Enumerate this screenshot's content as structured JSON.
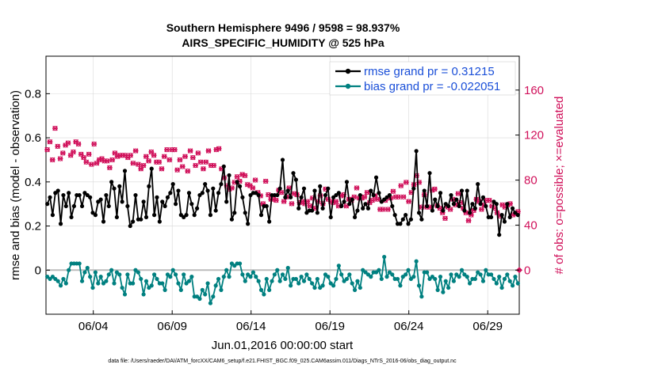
{
  "chart_data": {
    "type": "line",
    "title_line1": "Southern Hemisphere 9496 / 9598 = 98.937%",
    "title_line2": "AIRS_SPECIFIC_HUMIDITY @ 525 hPa",
    "xlabel": "Jun.01,2016 00:00:00 start",
    "ylabel_left": "rmse and bias (model - observation)",
    "ylabel_right": "# of obs: o=possible; ×=evaluated",
    "footnote": "data file: /Users/raeder/DAI/ATM_forcXX/CAM6_setup/f.e21.FHIST_BGC.f09_025.CAM6assim.011/Diags_NTrS_2016-06/obs_diag_output.nc",
    "xlim": [
      1.0,
      31.0
    ],
    "ylim_left": [
      -0.2,
      0.97
    ],
    "ylim_right": [
      -39.2,
      190.1
    ],
    "xticks": [
      4,
      9,
      14,
      19,
      24,
      29
    ],
    "xtick_labels": [
      "06/04",
      "06/09",
      "06/14",
      "06/19",
      "06/24",
      "06/29"
    ],
    "yticks_left": [
      0,
      0.2,
      0.4,
      0.6,
      0.8
    ],
    "ytick_labels_left": [
      "0",
      "0.2",
      "0.4",
      "0.6",
      "0.8"
    ],
    "yticks_right": [
      0,
      40,
      80,
      120,
      160
    ],
    "ytick_labels_right": [
      "0",
      "40",
      "80",
      "120",
      "160"
    ],
    "legend_location": "top-right",
    "colors": {
      "rmse": "#000000",
      "bias": "#008080",
      "obs": "#d0105a",
      "legend_text": "#1a4fd8",
      "grid": "#d8d8d8",
      "zero_line": "#bbbbbb"
    },
    "series": [
      {
        "name": "rmse grand pr = 0.31215",
        "axis": "left",
        "style": "line-marker",
        "color": "#000000",
        "values": [
          0.3,
          0.33,
          0.25,
          0.35,
          0.36,
          0.21,
          0.34,
          0.29,
          0.35,
          0.24,
          0.29,
          0.34,
          0.34,
          0.29,
          0.35,
          0.34,
          0.33,
          0.26,
          0.25,
          0.31,
          0.32,
          0.22,
          0.34,
          0.29,
          0.4,
          0.37,
          0.24,
          0.38,
          0.31,
          0.45,
          0.29,
          0.2,
          0.22,
          0.34,
          0.23,
          0.23,
          0.31,
          0.24,
          0.38,
          0.46,
          0.25,
          0.33,
          0.22,
          0.31,
          0.29,
          0.33,
          0.35,
          0.39,
          0.3,
          0.36,
          0.25,
          0.24,
          0.25,
          0.35,
          0.3,
          0.25,
          0.28,
          0.34,
          0.35,
          0.39,
          0.36,
          0.25,
          0.37,
          0.27,
          0.35,
          0.39,
          0.47,
          0.31,
          0.43,
          0.23,
          0.26,
          0.4,
          0.38,
          0.33,
          0.26,
          0.21,
          0.34,
          0.35,
          0.35,
          0.34,
          0.25,
          0.29,
          0.29,
          0.22,
          0.34,
          0.34,
          0.34,
          0.37,
          0.5,
          0.33,
          0.36,
          0.33,
          0.44,
          0.41,
          0.28,
          0.33,
          0.37,
          0.26,
          0.27,
          0.27,
          0.36,
          0.26,
          0.38,
          0.28,
          0.34,
          0.37,
          0.24,
          0.33,
          0.34,
          0.35,
          0.29,
          0.31,
          0.4,
          0.3,
          0.32,
          0.24,
          0.27,
          0.34,
          0.28,
          0.3,
          0.28,
          0.36,
          0.34,
          0.42,
          0.35,
          0.31,
          0.32,
          0.33,
          0.34,
          0.29,
          0.25,
          0.21,
          0.21,
          0.23,
          0.25,
          0.21,
          0.23,
          0.37,
          0.54,
          0.26,
          0.23,
          0.36,
          0.29,
          0.44,
          0.27,
          0.32,
          0.29,
          0.35,
          0.27,
          0.3,
          0.29,
          0.34,
          0.3,
          0.32,
          0.29,
          0.36,
          0.27,
          0.36,
          0.26,
          0.3,
          0.28,
          0.39,
          0.3,
          0.33,
          0.29,
          0.24,
          0.24,
          0.31,
          0.3,
          0.16,
          0.25,
          0.22,
          0.3,
          0.24,
          0.28,
          0.26,
          0.25
        ]
      },
      {
        "name": "bias grand pr = -0.022051",
        "axis": "left",
        "style": "line-marker",
        "color": "#008080",
        "values": [
          -0.03,
          -0.04,
          -0.03,
          -0.04,
          -0.05,
          -0.07,
          -0.04,
          -0.06,
          0.0,
          0.03,
          0.03,
          0.03,
          0.03,
          -0.05,
          -0.01,
          0.01,
          -0.03,
          -0.08,
          -0.01,
          -0.06,
          -0.03,
          -0.06,
          -0.05,
          -0.02,
          0.0,
          -0.06,
          -0.01,
          -0.02,
          -0.08,
          -0.11,
          -0.02,
          -0.06,
          -0.06,
          0.0,
          -0.01,
          -0.04,
          -0.11,
          -0.05,
          -0.08,
          -0.07,
          -0.02,
          -0.04,
          -0.06,
          -0.06,
          -0.09,
          -0.02,
          -0.03,
          0.0,
          -0.02,
          -0.06,
          -0.09,
          -0.02,
          -0.06,
          -0.05,
          -0.03,
          -0.12,
          -0.12,
          -0.13,
          -0.09,
          -0.11,
          -0.06,
          -0.15,
          -0.12,
          -0.07,
          -0.04,
          -0.09,
          -0.03,
          0.0,
          -0.03,
          0.03,
          0.02,
          0.03,
          0.03,
          -0.02,
          -0.05,
          -0.02,
          -0.03,
          -0.01,
          -0.03,
          -0.05,
          -0.09,
          -0.11,
          -0.04,
          -0.09,
          -0.05,
          -0.02,
          0.0,
          -0.05,
          -0.02,
          -0.04,
          0.01,
          -0.07,
          -0.04,
          -0.04,
          -0.06,
          -0.03,
          -0.05,
          -0.02,
          -0.04,
          -0.06,
          -0.08,
          -0.04,
          -0.08,
          -0.07,
          -0.02,
          -0.03,
          -0.06,
          -0.07,
          -0.04,
          0.02,
          -0.02,
          -0.05,
          -0.04,
          -0.02,
          -0.06,
          -0.09,
          -0.05,
          -0.08,
          0.0,
          -0.01,
          -0.02,
          -0.03,
          -0.01,
          -0.01,
          0.0,
          -0.04,
          0.06,
          -0.03,
          -0.01,
          -0.02,
          -0.04,
          -0.04,
          -0.07,
          -0.03,
          -0.02,
          0.0,
          -0.04,
          -0.03,
          0.04,
          -0.07,
          -0.12,
          -0.01,
          -0.01,
          -0.04,
          -0.03,
          -0.04,
          -0.09,
          -0.03,
          -0.1,
          -0.05,
          -0.08,
          -0.02,
          -0.05,
          -0.02,
          -0.03,
          0.0,
          -0.02,
          -0.03,
          -0.06,
          -0.04,
          -0.04,
          -0.01,
          -0.02,
          -0.05,
          0.0,
          -0.02,
          -0.02,
          -0.04,
          -0.06,
          -0.03,
          -0.08,
          -0.04,
          -0.02,
          -0.05,
          -0.07,
          -0.03,
          -0.06
        ]
      },
      {
        "name": "# of obs possible/evaluated",
        "axis": "right",
        "style": "marker",
        "color": "#d0105a",
        "values": [
          107,
          114,
          98,
          126,
          110,
          99,
          104,
          111,
          113,
          102,
          105,
          114,
          112,
          103,
          100,
          96,
          103,
          94,
          112,
          95,
          98,
          99,
          97,
          97,
          91,
          98,
          104,
          101,
          102,
          102,
          102,
          100,
          102,
          95,
          106,
          94,
          90,
          93,
          101,
          97,
          105,
          102,
          96,
          96,
          90,
          101,
          107,
          98,
          107,
          107,
          89,
          98,
          92,
          101,
          88,
          106,
          100,
          93,
          104,
          96,
          90,
          96,
          106,
          93,
          93,
          107,
          108,
          90,
          82,
          75,
          72,
          73,
          78,
          83,
          79,
          85,
          84,
          76,
          75,
          73,
          80,
          69,
          66,
          59,
          79,
          67,
          63,
          63,
          62,
          71,
          69,
          61,
          65,
          73,
          59,
          68,
          67,
          60,
          61,
          59,
          61,
          57,
          64,
          55,
          61,
          66,
          59,
          72,
          63,
          61,
          60,
          61,
          57,
          66,
          67,
          57,
          63,
          62,
          65,
          73,
          64,
          64,
          65,
          69,
          60,
          62,
          66,
          63,
          54,
          54,
          62,
          54,
          64,
          70,
          65,
          65,
          75,
          65,
          78,
          61,
          69,
          76,
          84,
          78,
          56,
          67,
          56,
          56,
          71,
          72,
          57,
          55,
          51,
          46,
          56,
          54,
          63,
          58,
          68,
          60,
          55,
          51,
          44,
          49,
          53,
          63,
          61,
          54,
          58,
          62,
          62,
          57,
          55,
          51,
          48,
          58,
          56,
          58,
          59,
          49,
          50,
          52
        ]
      }
    ]
  }
}
